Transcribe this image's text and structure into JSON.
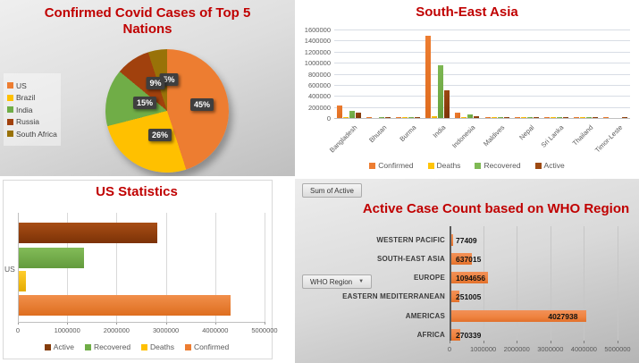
{
  "colors": {
    "title_red": "#C00000",
    "axis_text": "#595959",
    "gridline_light": "#d9d9d9",
    "gridline_blue": "#d8dde5",
    "confirmed_orange": "#ED7D31",
    "deaths_gold": "#FFC000",
    "recovered_green": "#70AD47",
    "active_brown": "#843C0B"
  },
  "chart_data": [
    {
      "id": "top5-pie",
      "type": "pie",
      "title": "Confirmed Covid Cases of Top 5 Nations",
      "title_lines": [
        "Confirmed Covid Cases of Top 5",
        "Nations"
      ],
      "categories": [
        "US",
        "Brazil",
        "India",
        "Russia",
        "South Africa"
      ],
      "values": [
        45,
        26,
        15,
        9,
        5
      ],
      "labels": [
        "45%",
        "26%",
        "15%",
        "9%",
        "5%"
      ],
      "slice_colors": [
        "#ED7D31",
        "#FFC000",
        "#70AD47",
        "#A1410D",
        "#997208"
      ],
      "legend_position": "left",
      "label_style": "dark-box-percent"
    },
    {
      "id": "south-east-asia",
      "type": "bar",
      "title": "South-East Asia",
      "categories": [
        "Bangladesh",
        "Bhutan",
        "Burma",
        "India",
        "Indonesia",
        "Maldives",
        "Nepal",
        "Sri Lanka",
        "Thailand",
        "Timor-Leste"
      ],
      "series": [
        {
          "name": "Confirmed",
          "color": "#ED7D31",
          "color2": "#DF6C1E",
          "values": [
            226000,
            100,
            350,
            1480000,
            100300,
            3400,
            18800,
            2800,
            3300,
            25
          ]
        },
        {
          "name": "Deaths",
          "color": "#FFC408",
          "color2": "#E8AC00",
          "values": [
            2970,
            0,
            6,
            33400,
            4840,
            15,
            48,
            11,
            58,
            0
          ]
        },
        {
          "name": "Recovered",
          "color": "#7FB954",
          "color2": "#659E3B",
          "values": [
            125700,
            90,
            290,
            951000,
            58200,
            2550,
            13750,
            2120,
            3110,
            0
          ]
        },
        {
          "name": "Active",
          "color": "#9E4A12",
          "color2": "#7A3307",
          "values": [
            97600,
            15,
            50,
            495500,
            37300,
            810,
            4950,
            670,
            130,
            25
          ]
        }
      ],
      "ylim": [
        0,
        1600000
      ],
      "ytick_step": 200000,
      "yticks": [
        "1600000",
        "1400000",
        "1200000",
        "1000000",
        "800000",
        "600000",
        "400000",
        "200000",
        "0"
      ],
      "legend_position": "bottom",
      "grid": true
    },
    {
      "id": "us-statistics",
      "type": "bar-horizontal",
      "title": "US Statistics",
      "category": "US",
      "series": [
        {
          "name": "Active",
          "color": "#A84E15",
          "color2": "#7C3207",
          "value": 2816000
        },
        {
          "name": "Recovered",
          "color": "#83BC58",
          "color2": "#639B3D",
          "value": 1326000
        },
        {
          "name": "Deaths",
          "color": "#FFCD2E",
          "color2": "#E5AC00",
          "value": 148000
        },
        {
          "name": "Confirmed",
          "color": "#F18F4B",
          "color2": "#DE6E1F",
          "value": 4290000
        }
      ],
      "legend_order": [
        "Active",
        "Recovered",
        "Deaths",
        "Confirmed"
      ],
      "legend_colors": [
        "#843C0B",
        "#70AD47",
        "#FFC000",
        "#ED7D31"
      ],
      "xlim": [
        0,
        5000000
      ],
      "xticks": [
        "0",
        "1000000",
        "2000000",
        "3000000",
        "4000000",
        "5000000"
      ],
      "grid": true,
      "legend_position": "bottom"
    },
    {
      "id": "who-region",
      "type": "bar-horizontal",
      "title": "Active Case Count based on WHO Region",
      "field_buttons": {
        "value_button": "Sum of Active",
        "axis_button": "WHO Region"
      },
      "categories": [
        "WESTERN PACIFIC",
        "SOUTH-EAST ASIA",
        "EUROPE",
        "EASTERN MEDITERRANEAN",
        "AMERICAS",
        "AFRICA"
      ],
      "values": [
        77409,
        637015,
        1094656,
        251005,
        4027938,
        270339
      ],
      "value_labels": [
        "77409",
        "637015",
        "1094656",
        "251005",
        "4027938",
        "270339"
      ],
      "bar_color": "#EF8440",
      "xlim": [
        0,
        5000000
      ],
      "xticks": [
        "0",
        "1000000",
        "2000000",
        "3000000",
        "4000000",
        "5000000"
      ],
      "grid": true
    }
  ]
}
